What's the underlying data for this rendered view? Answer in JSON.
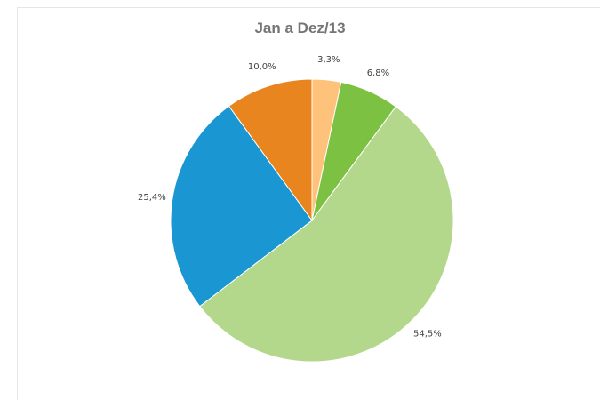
{
  "chart_data": {
    "type": "pie",
    "title": "Jan a Dez/13",
    "slices": [
      {
        "label": "3,3%",
        "value": 3.3,
        "color": "#FFC27A"
      },
      {
        "label": "6,8%",
        "value": 6.8,
        "color": "#7DC142"
      },
      {
        "label": "54,5%",
        "value": 54.5,
        "color": "#B3D88B"
      },
      {
        "label": "25,4%",
        "value": 25.4,
        "color": "#1A96D3"
      },
      {
        "label": "10,0%",
        "value": 10.0,
        "color": "#E8851E"
      }
    ]
  }
}
